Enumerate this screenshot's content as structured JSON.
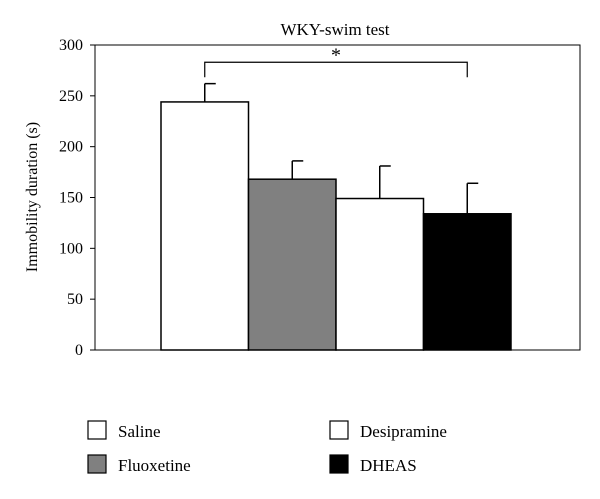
{
  "chart_data": {
    "type": "bar",
    "title": "WKY-swim test",
    "xlabel": "",
    "ylabel": "Immobility duration (s)",
    "ylim": [
      0,
      300
    ],
    "yticks": [
      0,
      50,
      100,
      150,
      200,
      250,
      300
    ],
    "categories": [
      "Saline",
      "Fluoxetine",
      "Desipramine",
      "DHEAS"
    ],
    "values": [
      244,
      168,
      149,
      134
    ],
    "errors": [
      18,
      18,
      32,
      30
    ],
    "colors": [
      "#ffffff",
      "#808080",
      "#ffffff",
      "#000000"
    ],
    "significance": {
      "from": "Saline",
      "to": "DHEAS",
      "label": "*",
      "bracket_value": 283
    },
    "legend_order": [
      "Saline",
      "Desipramine",
      "Fluoxetine",
      "DHEAS"
    ],
    "grid": false
  }
}
